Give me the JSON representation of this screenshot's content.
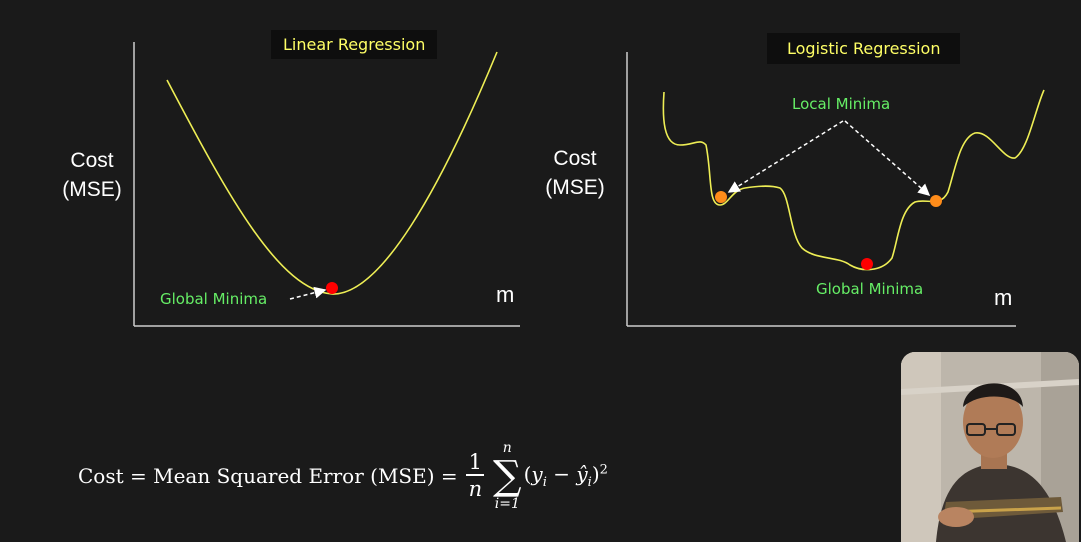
{
  "left_panel": {
    "title": "Linear Regression",
    "ylabel_line1": "Cost",
    "ylabel_line2": "(MSE)",
    "xlabel": "m",
    "annotation": "Global Minima"
  },
  "right_panel": {
    "title": "Logistic Regression",
    "ylabel_line1": "Cost",
    "ylabel_line2": "(MSE)",
    "xlabel": "m",
    "local_annotation": "Local Minima",
    "global_annotation": "Global Minima"
  },
  "formula": {
    "lhs": "Cost = Mean Squared Error (MSE) =",
    "frac_num": "1",
    "frac_den": "n",
    "sum_upper": "n",
    "sum_lower": "i=1",
    "sum_symbol": "∑"
  },
  "colors": {
    "background": "#1a1a1a",
    "curve": "#eeee55",
    "title_text": "#ffff66",
    "annotation_text": "#66ee66",
    "global_min_point": "#ff0000",
    "local_min_point": "#ff8c1a"
  }
}
